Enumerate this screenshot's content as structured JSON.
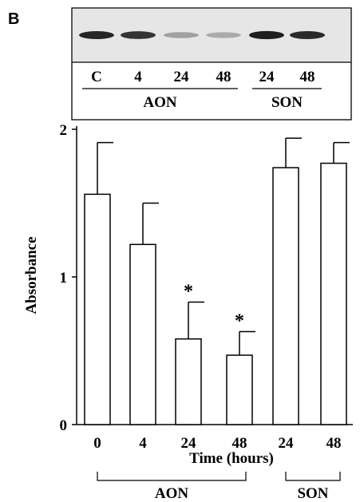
{
  "panel_label": "B",
  "blot": {
    "lane_labels": [
      "C",
      "4",
      "24",
      "48",
      "24",
      "48"
    ],
    "band_intensity": [
      0.92,
      0.85,
      0.35,
      0.3,
      0.95,
      0.9
    ],
    "groups": [
      {
        "label": "AON",
        "lanes": [
          0,
          3
        ]
      },
      {
        "label": "SON",
        "lanes": [
          4,
          5
        ]
      }
    ]
  },
  "chart_data": {
    "type": "bar",
    "categories": [
      "0",
      "4",
      "24",
      "48",
      "24",
      "48"
    ],
    "values": [
      1.56,
      1.22,
      0.58,
      0.47,
      1.74,
      1.77
    ],
    "errors": [
      0.35,
      0.28,
      0.25,
      0.16,
      0.2,
      0.14
    ],
    "significant": [
      false,
      false,
      true,
      true,
      false,
      false
    ],
    "significance_marker": "*",
    "title": "",
    "xlabel": "Time (hours)",
    "ylabel": "Absorbance",
    "ylim": [
      0,
      2.05
    ],
    "yticks": [
      "0",
      "1",
      "2"
    ],
    "ytick_values": [
      0,
      1,
      2
    ],
    "groups": [
      {
        "label": "AON",
        "bars": [
          0,
          3
        ]
      },
      {
        "label": "SON",
        "bars": [
          4,
          5
        ]
      }
    ],
    "bar_fill": "#ffffff",
    "bar_stroke": "#000000",
    "grid": false
  }
}
